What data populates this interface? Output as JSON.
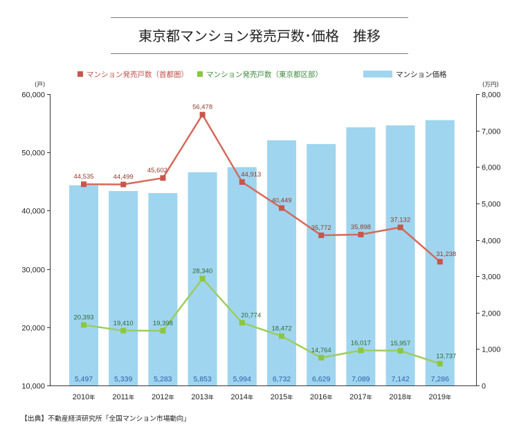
{
  "source": "【出典】不動産経済研究所「全国マンション市場動向」",
  "chart_data": {
    "type": "bar",
    "title": "東京都マンション発売戸数･価格　推移",
    "categories": [
      "2010年",
      "2011年",
      "2012年",
      "2013年",
      "2014年",
      "2015年",
      "2016年",
      "2017年",
      "2018年",
      "2019年"
    ],
    "grid": false,
    "legend": "top",
    "left_axis": {
      "label": "(戸)",
      "range": [
        10000,
        60000
      ],
      "ticks": [
        10000,
        20000,
        30000,
        40000,
        50000,
        60000
      ],
      "tick_labels": [
        "10,000",
        "20,000",
        "30,000",
        "40,000",
        "50,000",
        "60,000"
      ]
    },
    "right_axis": {
      "label": "(万円)",
      "range": [
        0,
        8000
      ],
      "ticks": [
        0,
        1000,
        2000,
        3000,
        4000,
        5000,
        6000,
        7000,
        8000
      ],
      "tick_labels": [
        "0",
        "1,000",
        "2,000",
        "3,000",
        "4,000",
        "5,000",
        "6,000",
        "7,000",
        "8,000"
      ]
    },
    "series": [
      {
        "name": "マンション発売戸数（首都圏）",
        "type": "line",
        "axis": "left",
        "values": [
          44535,
          44499,
          45602,
          56478,
          44913,
          40449,
          35772,
          35898,
          37132,
          31238
        ],
        "labels": [
          "44,535",
          "44,499",
          "45,602",
          "56,478",
          "44,913",
          "40,449",
          "35,772",
          "35,898",
          "37,132",
          "31,238"
        ],
        "color": "#d6685a",
        "marker_color": "#c8564a",
        "label_color": "#8f3a2d",
        "legend_text_color": "#c0504d"
      },
      {
        "name": "マンション発売戸数（東京都区部）",
        "type": "line",
        "axis": "left",
        "values": [
          20393,
          19410,
          19398,
          28340,
          20774,
          18472,
          14764,
          16017,
          15957,
          13737
        ],
        "labels": [
          "20,393",
          "19,410",
          "19,398",
          "28,340",
          "20,774",
          "18,472",
          "14,764",
          "16,017",
          "15,957",
          "13,737"
        ],
        "color": "#9ccc5e",
        "marker_color": "#8cc63f",
        "label_color": "#2d6a31",
        "legend_text_color": "#3d8b3d"
      },
      {
        "name": "マンション価格",
        "type": "bar",
        "axis": "right",
        "values": [
          5497,
          5339,
          5283,
          5853,
          5994,
          6732,
          6629,
          7089,
          7142,
          7286
        ],
        "labels": [
          "5,497",
          "5,339",
          "5,283",
          "5,853",
          "5,994",
          "6,732",
          "6,629",
          "7,089",
          "7,142",
          "7,286"
        ],
        "color": "#9fd5ef",
        "marker_color": "#9fd5ef",
        "label_color": "#2b5fad",
        "legend_text_color": "#222222"
      }
    ]
  }
}
